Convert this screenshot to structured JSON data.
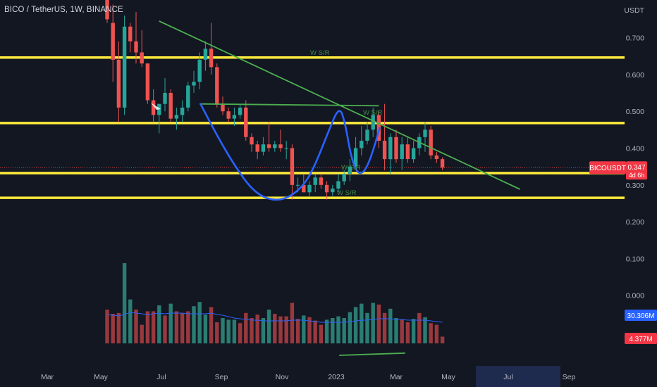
{
  "header": {
    "title": "BICO / TetherUS, 1W, BINANCE"
  },
  "colors": {
    "background": "#131722",
    "up": "#26a69a",
    "down": "#ef5350",
    "up_volume": "#2a7d73",
    "down_volume": "#99393e",
    "support_resistance": "#ffeb3b",
    "trendline": "#4caf50",
    "pattern": "#2962ff",
    "volume_ma": "#2962ff",
    "axis_text": "#b2b5be",
    "badge_blue": "#2962ff",
    "badge_red": "#f23645"
  },
  "price_axis": {
    "unit": "USDT",
    "ticks": [
      "0.700",
      "0.600",
      "0.500",
      "0.400",
      "0.300",
      "0.200",
      "0.100",
      "0.000"
    ]
  },
  "time_axis": {
    "ticks": [
      "Mar",
      "May",
      "Jul",
      "Sep",
      "Nov",
      "2023",
      "Mar",
      "May",
      "Jul",
      "Sep"
    ]
  },
  "badges": {
    "symbol": "BICOUSDT",
    "price": "0.347",
    "countdown": "4d 6h",
    "volume_ma": "30.306M",
    "volume": "4.377M"
  },
  "annotations": [
    "W S/R",
    "W S/R",
    "W S/R",
    "W S/R"
  ],
  "chart_data": {
    "type": "candlestick",
    "title": "BICO / TetherUS, 1W, BINANCE",
    "ylabel": "USDT",
    "ylim": [
      -0.165,
      0.745
    ],
    "x_first": "2022-05-09",
    "x_interval_days": 7,
    "grid": false,
    "ohlc": [
      [
        0.97,
        0.98,
        0.74,
        0.75
      ],
      [
        0.74,
        0.79,
        0.58,
        0.64
      ],
      [
        0.64,
        0.69,
        0.47,
        0.51
      ],
      [
        0.51,
        0.76,
        0.49,
        0.73
      ],
      [
        0.73,
        0.74,
        0.66,
        0.69
      ],
      [
        0.69,
        0.77,
        0.63,
        0.66
      ],
      [
        0.66,
        0.72,
        0.62,
        0.63
      ],
      [
        0.63,
        0.63,
        0.52,
        0.53
      ],
      [
        0.53,
        0.56,
        0.47,
        0.49
      ],
      [
        0.49,
        0.52,
        0.44,
        0.52
      ],
      [
        0.52,
        0.59,
        0.5,
        0.55
      ],
      [
        0.55,
        0.56,
        0.47,
        0.48
      ],
      [
        0.48,
        0.51,
        0.45,
        0.49
      ],
      [
        0.49,
        0.53,
        0.47,
        0.51
      ],
      [
        0.51,
        0.58,
        0.5,
        0.57
      ],
      [
        0.57,
        0.61,
        0.55,
        0.58
      ],
      [
        0.58,
        0.66,
        0.56,
        0.64
      ],
      [
        0.64,
        0.69,
        0.61,
        0.67
      ],
      [
        0.67,
        0.74,
        0.6,
        0.62
      ],
      [
        0.62,
        0.63,
        0.51,
        0.52
      ],
      [
        0.52,
        0.54,
        0.49,
        0.5
      ],
      [
        0.5,
        0.51,
        0.47,
        0.48
      ],
      [
        0.48,
        0.51,
        0.46,
        0.49
      ],
      [
        0.49,
        0.52,
        0.48,
        0.51
      ],
      [
        0.51,
        0.53,
        0.42,
        0.43
      ],
      [
        0.43,
        0.44,
        0.39,
        0.41
      ],
      [
        0.41,
        0.42,
        0.37,
        0.39
      ],
      [
        0.39,
        0.43,
        0.38,
        0.41
      ],
      [
        0.41,
        0.47,
        0.39,
        0.4
      ],
      [
        0.4,
        0.42,
        0.39,
        0.41
      ],
      [
        0.41,
        0.45,
        0.39,
        0.4
      ],
      [
        0.4,
        0.42,
        0.37,
        0.4
      ],
      [
        0.4,
        0.41,
        0.26,
        0.3
      ],
      [
        0.3,
        0.32,
        0.28,
        0.3
      ],
      [
        0.3,
        0.33,
        0.28,
        0.28
      ],
      [
        0.28,
        0.31,
        0.27,
        0.3
      ],
      [
        0.3,
        0.33,
        0.28,
        0.32
      ],
      [
        0.32,
        0.33,
        0.29,
        0.3
      ],
      [
        0.3,
        0.31,
        0.26,
        0.28
      ],
      [
        0.28,
        0.3,
        0.27,
        0.29
      ],
      [
        0.29,
        0.33,
        0.28,
        0.31
      ],
      [
        0.31,
        0.34,
        0.3,
        0.33
      ],
      [
        0.33,
        0.37,
        0.31,
        0.35
      ],
      [
        0.35,
        0.43,
        0.34,
        0.4
      ],
      [
        0.4,
        0.46,
        0.38,
        0.42
      ],
      [
        0.42,
        0.47,
        0.41,
        0.45
      ],
      [
        0.45,
        0.51,
        0.43,
        0.49
      ],
      [
        0.49,
        0.5,
        0.4,
        0.42
      ],
      [
        0.42,
        0.52,
        0.34,
        0.37
      ],
      [
        0.37,
        0.44,
        0.33,
        0.43
      ],
      [
        0.43,
        0.45,
        0.36,
        0.37
      ],
      [
        0.37,
        0.43,
        0.34,
        0.41
      ],
      [
        0.41,
        0.43,
        0.36,
        0.37
      ],
      [
        0.37,
        0.42,
        0.36,
        0.4
      ],
      [
        0.4,
        0.44,
        0.38,
        0.43
      ],
      [
        0.43,
        0.47,
        0.39,
        0.45
      ],
      [
        0.45,
        0.46,
        0.37,
        0.38
      ],
      [
        0.38,
        0.39,
        0.36,
        0.37
      ],
      [
        0.37,
        0.375,
        0.34,
        0.347
      ]
    ],
    "volume": [
      [
        40,
        0
      ],
      [
        35,
        0
      ],
      [
        36,
        0
      ],
      [
        95,
        1
      ],
      [
        52,
        1
      ],
      [
        40,
        0
      ],
      [
        22,
        0
      ],
      [
        38,
        0
      ],
      [
        38,
        0
      ],
      [
        45,
        1
      ],
      [
        33,
        0
      ],
      [
        47,
        1
      ],
      [
        38,
        0
      ],
      [
        36,
        0
      ],
      [
        38,
        0
      ],
      [
        44,
        1
      ],
      [
        49,
        1
      ],
      [
        34,
        1
      ],
      [
        43,
        0
      ],
      [
        25,
        0
      ],
      [
        30,
        1
      ],
      [
        28,
        1
      ],
      [
        28,
        1
      ],
      [
        24,
        0
      ],
      [
        36,
        0
      ],
      [
        30,
        0
      ],
      [
        34,
        0
      ],
      [
        30,
        1
      ],
      [
        40,
        1
      ],
      [
        35,
        0
      ],
      [
        32,
        0
      ],
      [
        32,
        0
      ],
      [
        48,
        0
      ],
      [
        29,
        0
      ],
      [
        33,
        1
      ],
      [
        31,
        0
      ],
      [
        27,
        0
      ],
      [
        22,
        0
      ],
      [
        28,
        1
      ],
      [
        30,
        1
      ],
      [
        32,
        1
      ],
      [
        30,
        1
      ],
      [
        37,
        1
      ],
      [
        43,
        1
      ],
      [
        47,
        1
      ],
      [
        36,
        1
      ],
      [
        48,
        1
      ],
      [
        46,
        0
      ],
      [
        36,
        0
      ],
      [
        41,
        1
      ],
      [
        30,
        1
      ],
      [
        28,
        0
      ],
      [
        25,
        0
      ],
      [
        29,
        1
      ],
      [
        36,
        0
      ],
      [
        31,
        1
      ],
      [
        24,
        0
      ],
      [
        22,
        0
      ],
      [
        8,
        0
      ]
    ],
    "volume_ma": [
      41,
      40,
      39,
      41,
      44,
      43,
      42,
      41,
      42,
      43,
      42,
      43,
      43,
      43,
      42,
      42,
      42,
      42,
      43,
      41,
      40,
      38,
      36,
      35,
      34,
      33,
      33,
      32,
      32,
      32,
      32,
      32,
      33,
      33,
      33,
      32,
      31,
      30,
      30,
      30,
      30,
      30,
      31,
      32,
      33,
      33,
      34,
      35,
      35,
      35,
      34,
      34,
      33,
      33,
      33,
      33,
      32,
      31,
      30
    ],
    "levels": [
      0.646,
      0.468,
      0.332,
      0.265
    ],
    "trendlines": [
      {
        "from": [
          "2022-07-11",
          0.745
        ],
        "to": [
          "2023-09-21",
          0.288
        ]
      },
      {
        "from": [
          "2022-08-29",
          0.52
        ],
        "to": [
          "2023-04-03",
          0.515
        ]
      },
      {
        "from": [
          "2023-02-14",
          -0.163
        ],
        "to": [
          "2023-05-05",
          -0.157
        ]
      }
    ],
    "pattern_curve": [
      [
        "2022-08-30",
        0.52
      ],
      [
        "2022-09-20",
        0.43
      ],
      [
        "2022-10-11",
        0.35
      ],
      [
        "2022-11-01",
        0.285
      ],
      [
        "2022-11-22",
        0.258
      ],
      [
        "2022-12-13",
        0.262
      ],
      [
        "2023-01-03",
        0.3
      ],
      [
        "2023-01-17",
        0.36
      ],
      [
        "2023-01-31",
        0.44
      ],
      [
        "2023-02-14",
        0.515
      ],
      [
        "2023-02-21",
        0.47
      ],
      [
        "2023-02-28",
        0.38
      ],
      [
        "2023-03-07",
        0.335
      ],
      [
        "2023-03-14",
        0.33
      ],
      [
        "2023-03-21",
        0.355
      ],
      [
        "2023-03-28",
        0.4
      ],
      [
        "2023-04-04",
        0.455
      ]
    ],
    "last_price": 0.347
  }
}
